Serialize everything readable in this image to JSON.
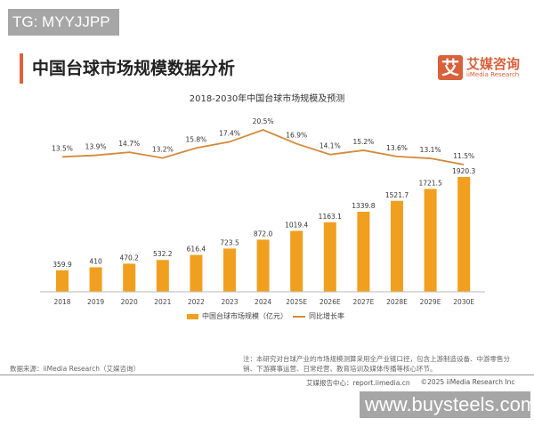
{
  "watermarks": {
    "top_left": "TG: MYYJJPP",
    "bottom_right": "www.buysteels.com"
  },
  "header": {
    "title": "中国台球市场规模数据分析",
    "logo_mark": "艾",
    "logo_cn": "艾媒咨询",
    "logo_en": "iiMedia Research"
  },
  "colors": {
    "bar": "#f0a01e",
    "line": "#d48a3a",
    "accent": "#e0623a"
  },
  "chart_data": {
    "type": "bar+line",
    "title": "2018-2030年中国台球市场规模及预测",
    "categories": [
      "2018",
      "2019",
      "2020",
      "2021",
      "2022",
      "2023",
      "2024",
      "2025E",
      "2026E",
      "2027E",
      "2028E",
      "2029E",
      "2030E"
    ],
    "series": [
      {
        "name": "中国台球市场规模（亿元）",
        "type": "bar",
        "values": [
          359.9,
          410,
          470.2,
          532.2,
          616.4,
          723.5,
          872.0,
          1019.4,
          1163.1,
          1339.8,
          1521.7,
          1721.5,
          1920.3
        ],
        "labels": [
          "359.9",
          "410",
          "470.2",
          "532.2",
          "616.4",
          "723.5",
          "872.0",
          "1019.4",
          "1163.1",
          "1339.8",
          "1521.7",
          "1721.5",
          "1920.3"
        ]
      },
      {
        "name": "同比增长率",
        "type": "line",
        "values": [
          13.5,
          13.9,
          14.7,
          13.2,
          15.8,
          17.4,
          20.5,
          16.9,
          14.1,
          15.2,
          13.6,
          13.1,
          11.5
        ],
        "labels": [
          "13.5%",
          "13.9%",
          "14.7%",
          "13.2%",
          "15.8%",
          "17.4%",
          "20.5%",
          "16.9%",
          "14.1%",
          "15.2%",
          "13.6%",
          "13.1%",
          "11.5%"
        ]
      }
    ],
    "legend": "bottom",
    "grid": false
  },
  "footer": {
    "note": "注：本研究对台球产业的市场规模测算采用全产业链口径，包含上游制造设备、中游零售分销、下游赛事运营、日常经营、教育培训及媒体传播等核心环节。",
    "source": "数据来源：iiMedia Research（艾媒咨询）",
    "report_center": "艾媒报告中心：report.iimedia.cn",
    "copyright": "©2025  iiMedia Research  Inc"
  }
}
